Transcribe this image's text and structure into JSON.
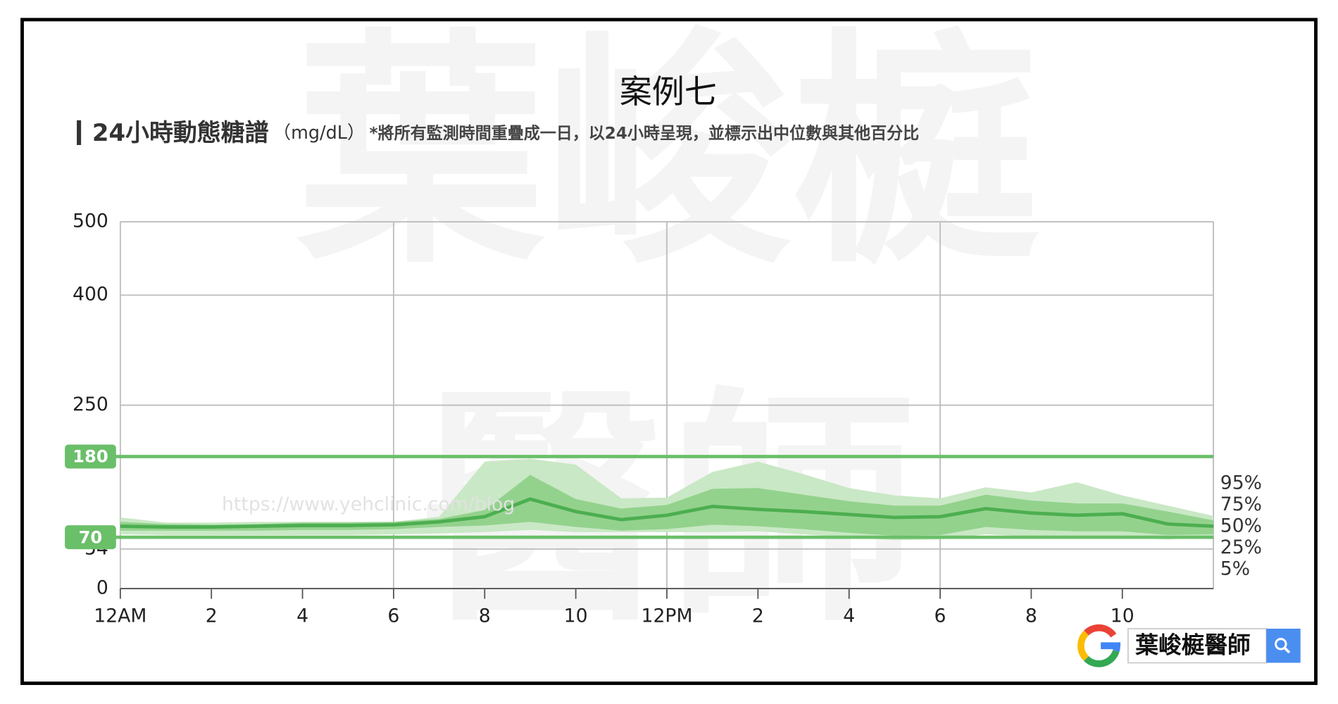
{
  "title": "案例七",
  "heading": "24小時動態糖譜",
  "unit": "（mg/dL）",
  "note": "*將所有監測時間重疊成一日，以24小時呈現，並標示出中位數與其他百分比",
  "watermark": [
    "葉峻榳",
    "醫師"
  ],
  "url": "https://www.yehclinic.com/blog",
  "search": {
    "text": "葉峻榳醫師"
  },
  "chart_data": {
    "type": "agp",
    "x": [
      0,
      1,
      2,
      3,
      4,
      5,
      6,
      7,
      8,
      9,
      10,
      11,
      12,
      13,
      14,
      15,
      16,
      17,
      18,
      19,
      20,
      21,
      22,
      23,
      24
    ],
    "xlim": [
      0,
      24
    ],
    "xticks": [
      {
        "value": 0,
        "label": "12AM"
      },
      2,
      4,
      6,
      8,
      10,
      {
        "value": 12,
        "label": "12PM"
      },
      {
        "value": 14,
        "label": "2"
      },
      {
        "value": 16,
        "label": "4"
      },
      {
        "value": 18,
        "label": "6"
      },
      {
        "value": 20,
        "label": "8"
      },
      {
        "value": 22,
        "label": "10"
      }
    ],
    "xgrid": [
      0,
      6,
      12,
      18,
      24
    ],
    "ylim": [
      0,
      500
    ],
    "yticks": [
      0,
      54,
      250,
      400,
      500
    ],
    "grid": true,
    "targets": [
      70,
      180
    ],
    "target_color": "#6abf69",
    "outer_band_color": "#c9e8c5",
    "inner_band_color": "#93d28d",
    "median_color": "#4cae50",
    "series": [
      {
        "name": "5%",
        "values": [
          74,
          73,
          73,
          73,
          73,
          73,
          74,
          75,
          77,
          80,
          77,
          77,
          77,
          77,
          78,
          74,
          70,
          66,
          67,
          74,
          71,
          70,
          69,
          67,
          70
        ]
      },
      {
        "name": "25%",
        "values": [
          79,
          79,
          79,
          79,
          80,
          80,
          81,
          84,
          86,
          91,
          84,
          79,
          81,
          87,
          85,
          81,
          76,
          72,
          73,
          84,
          80,
          78,
          78,
          73,
          74
        ]
      },
      {
        "name": "50%",
        "values": [
          85,
          84,
          84,
          85,
          86,
          86,
          87,
          91,
          98,
          122,
          105,
          94,
          100,
          112,
          108,
          105,
          101,
          97,
          98,
          109,
          103,
          100,
          102,
          88,
          85
        ]
      },
      {
        "name": "75%",
        "values": [
          91,
          88,
          87,
          88,
          90,
          90,
          91,
          95,
          107,
          155,
          122,
          109,
          114,
          136,
          137,
          128,
          119,
          113,
          113,
          128,
          120,
          116,
          116,
          105,
          93
        ]
      },
      {
        "name": "95%",
        "values": [
          97,
          90,
          90,
          91,
          91,
          91,
          91,
          98,
          173,
          177,
          169,
          123,
          124,
          159,
          173,
          156,
          137,
          127,
          123,
          138,
          131,
          145,
          127,
          113,
          99
        ]
      }
    ]
  }
}
